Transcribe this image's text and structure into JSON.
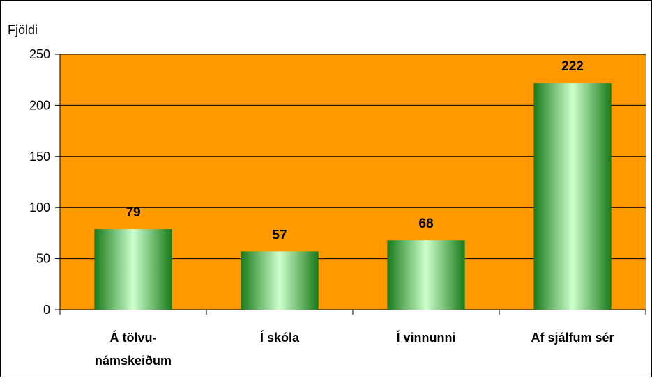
{
  "chart_data": {
    "type": "bar",
    "title": "",
    "xlabel": "",
    "ylabel": "Fjöldi",
    "categories": [
      [
        "Á tölvu-",
        "námskeiðum"
      ],
      [
        "Í skóla"
      ],
      [
        "Í vinnunni"
      ],
      [
        "Af sjálfum sér"
      ]
    ],
    "values": [
      79,
      57,
      68,
      222
    ],
    "data_labels": [
      "79",
      "57",
      "68",
      "222"
    ],
    "ylim": [
      0,
      250
    ],
    "yticks": [
      0,
      50,
      100,
      150,
      200,
      250
    ],
    "grid": true,
    "legend": "none",
    "colors": {
      "plot_background": "#ff9900",
      "bar_edge": "#1a7a1a",
      "bar_center": "#ccffcc",
      "gridline": "#000000"
    }
  }
}
